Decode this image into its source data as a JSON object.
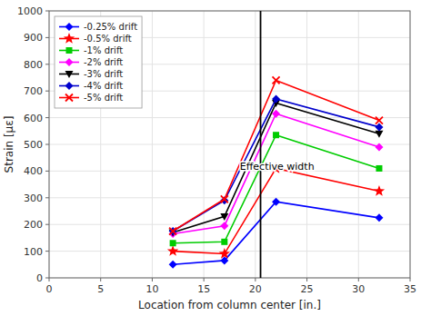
{
  "chart_data": {
    "type": "line",
    "xlabel": "Location from column center [in.]",
    "ylabel": "Strain [με]",
    "x": [
      12,
      17,
      22,
      32
    ],
    "xlim": [
      0,
      35
    ],
    "ylim": [
      0,
      1000
    ],
    "xticks": [
      0,
      5,
      10,
      15,
      20,
      25,
      30,
      35
    ],
    "yticks": [
      0,
      100,
      200,
      300,
      400,
      500,
      600,
      700,
      800,
      900,
      1000
    ],
    "grid": true,
    "legend": "upper left",
    "reference_lines": [
      {
        "x": 20.5
      }
    ],
    "annotations": [
      {
        "text": "Effective width",
        "x": 18.5,
        "y": 420
      }
    ],
    "series": [
      {
        "name": "-0.25% drift",
        "color": "#0000FF",
        "marker": "diamond",
        "values": [
          50,
          65,
          285,
          225
        ]
      },
      {
        "name": "-0.5% drift",
        "color": "#FF0000",
        "marker": "star",
        "values": [
          100,
          90,
          410,
          325
        ]
      },
      {
        "name": "-1% drift",
        "color": "#00CC00",
        "marker": "square",
        "values": [
          130,
          135,
          535,
          410
        ]
      },
      {
        "name": "-2% drift",
        "color": "#FF00FF",
        "marker": "diamond",
        "values": [
          165,
          195,
          615,
          490
        ]
      },
      {
        "name": "-3% drift",
        "color": "#000000",
        "marker": "triangle-down",
        "values": [
          170,
          230,
          655,
          540
        ]
      },
      {
        "name": "-4% drift",
        "color": "#0000CC",
        "marker": "diamond",
        "values": [
          175,
          290,
          670,
          565
        ]
      },
      {
        "name": "-5% drift",
        "color": "#FF0000",
        "marker": "x",
        "values": [
          175,
          295,
          740,
          590
        ]
      }
    ]
  }
}
